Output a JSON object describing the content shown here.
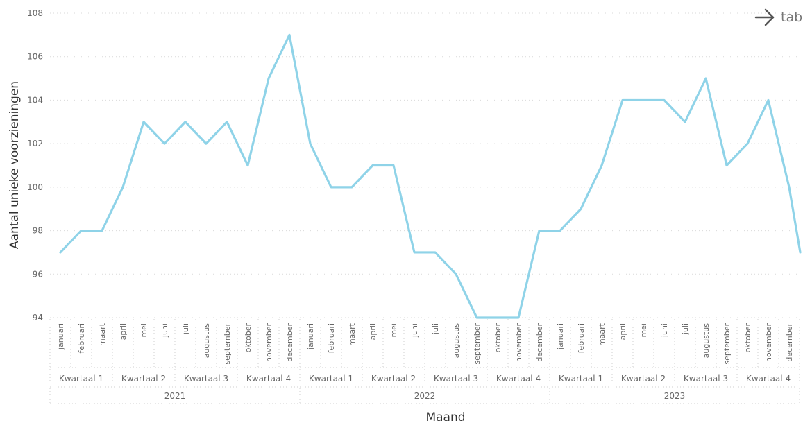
{
  "nav": {
    "label": "tab",
    "icon": "arrow-right-icon"
  },
  "chart_data": {
    "type": "line",
    "xlabel": "Maand",
    "ylabel": "Aantal unieke voorzieningen",
    "ylim": [
      94,
      108
    ],
    "yticks": [
      94,
      96,
      98,
      100,
      102,
      104,
      106,
      108
    ],
    "grid": true,
    "line_color": "#8fd3e8",
    "years": [
      "2021",
      "2022",
      "2023"
    ],
    "quarters": [
      "Kwartaal 1",
      "Kwartaal 2",
      "Kwartaal 3",
      "Kwartaal 4"
    ],
    "months": [
      "januari",
      "februari",
      "maart",
      "april",
      "mei",
      "juni",
      "juli",
      "augustus",
      "september",
      "oktober",
      "november",
      "december"
    ],
    "series": [
      {
        "values": [
          97,
          98,
          98,
          100,
          103,
          102,
          103,
          102,
          103,
          101,
          105,
          107,
          102,
          100,
          100,
          101,
          101,
          97,
          97,
          96,
          94,
          94,
          94,
          98,
          98,
          99,
          101,
          104,
          104,
          104,
          103,
          105,
          101,
          102,
          104,
          100,
          97
        ]
      }
    ]
  }
}
